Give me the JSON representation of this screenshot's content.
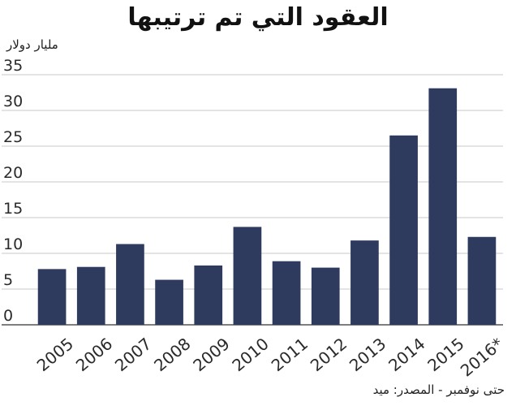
{
  "chart_data": {
    "type": "bar",
    "title": "العقود التي تم ترتيبها",
    "ylabel": "مليار دولار",
    "xlabel": "",
    "source": "حتى نوفمبر - المصدر: ميد",
    "categories": [
      "2005",
      "2006",
      "2007",
      "2008",
      "2009",
      "2010",
      "2011",
      "2012",
      "2013",
      "2014",
      "2015",
      "2016*"
    ],
    "values": [
      7.8,
      8.1,
      11.3,
      6.3,
      8.3,
      13.7,
      8.9,
      8.0,
      11.8,
      26.5,
      33.1,
      12.3
    ],
    "ylim": [
      0,
      35
    ],
    "yticks": [
      "0",
      "5",
      "10",
      "15",
      "20",
      "25",
      "30",
      "35"
    ],
    "grid": true,
    "bar_color": "#2e3b5e",
    "grid_color": "#c8c8c8"
  }
}
